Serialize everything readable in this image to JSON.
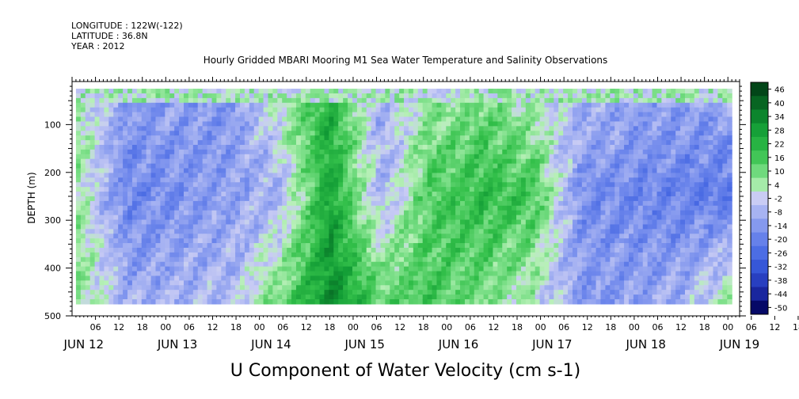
{
  "meta": {
    "longitude": "LONGITUDE : 122W(-122)",
    "latitude": "LATITUDE : 36.8N",
    "year": "YEAR : 2012"
  },
  "chart_data": {
    "type": "heatmap",
    "title": "Hourly Gridded MBARI Mooring M1 Sea Water Temperature and Salinity Observations",
    "variable": "U Component of Water Velocity (cm s-1)",
    "ylabel": "DEPTH (m)",
    "ylim": [
      500,
      10
    ],
    "yticks": [
      100,
      200,
      300,
      400,
      500
    ],
    "y_reversed": true,
    "x_hour_ticks": [
      "06",
      "12",
      "18",
      "00",
      "06",
      "12",
      "18",
      "00",
      "06",
      "12",
      "18",
      "00",
      "06",
      "12",
      "18",
      "00",
      "06",
      "12",
      "18",
      "00",
      "06",
      "12",
      "18",
      "00",
      "06",
      "12",
      "18",
      "00",
      "06",
      "12",
      "18",
      "00"
    ],
    "x_day_labels": [
      "JUN 12",
      "JUN 13",
      "JUN 14",
      "JUN 15",
      "JUN 16",
      "JUN 17",
      "JUN 18",
      "JUN 19"
    ],
    "colorbar_levels": [
      "46",
      "40",
      "34",
      "28",
      "22",
      "16",
      "10",
      "4",
      "-2",
      "-8",
      "-14",
      "-20",
      "-26",
      "-32",
      "-38",
      "-44",
      "-50"
    ],
    "colorbar_range": [
      -50,
      50
    ],
    "colorbar_colors": {
      "low": "#000066",
      "mid_low": "#3355dd",
      "near_zero_neg": "#c0c0f0",
      "near_zero_pos": "#b8f0b8",
      "mid_high": "#22bb44",
      "high": "#004d1a"
    },
    "data_start": "JUN 12 ~01:00",
    "data_end": "JUN 19 ~01:00",
    "approx_profile": [
      {
        "day": "JUN 12",
        "shallow": 8,
        "mid": 6,
        "deep": 10
      },
      {
        "day": "JUN 12 pm",
        "shallow": -12,
        "mid": -16,
        "deep": -8
      },
      {
        "day": "JUN 13",
        "shallow": -10,
        "mid": -14,
        "deep": -6
      },
      {
        "day": "JUN 13 pm",
        "shallow": -14,
        "mid": -10,
        "deep": -4
      },
      {
        "day": "JUN 14",
        "shallow": 6,
        "mid": -6,
        "deep": 12
      },
      {
        "day": "JUN 14 pm",
        "shallow": 24,
        "mid": 28,
        "deep": 34
      },
      {
        "day": "JUN 15",
        "shallow": -8,
        "mid": -6,
        "deep": 14
      },
      {
        "day": "JUN 15 pm",
        "shallow": 8,
        "mid": 16,
        "deep": 18
      },
      {
        "day": "JUN 16",
        "shallow": 10,
        "mid": 22,
        "deep": 10
      },
      {
        "day": "JUN 16 pm",
        "shallow": 4,
        "mid": 18,
        "deep": 4
      },
      {
        "day": "JUN 17",
        "shallow": -6,
        "mid": -14,
        "deep": -12
      },
      {
        "day": "JUN 17 pm",
        "shallow": -8,
        "mid": -16,
        "deep": -10
      },
      {
        "day": "JUN 18",
        "shallow": -10,
        "mid": -18,
        "deep": -6
      },
      {
        "day": "JUN 18 pm",
        "shallow": -6,
        "mid": -20,
        "deep": 8
      }
    ]
  }
}
